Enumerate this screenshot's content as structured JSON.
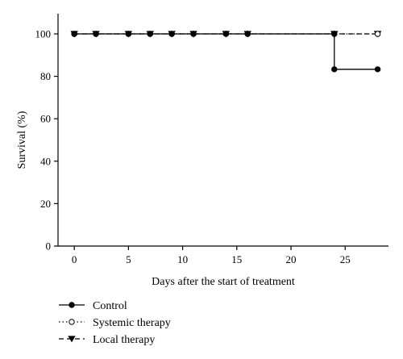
{
  "chart_data": {
    "type": "line",
    "title": "",
    "xlabel": "Days after the start of treatment",
    "ylabel": "Survival (%)",
    "xlim": [
      -1.5,
      29
    ],
    "ylim": [
      0,
      100
    ],
    "xticks": [
      0,
      5,
      10,
      15,
      20,
      25
    ],
    "yticks": [
      0,
      20,
      40,
      60,
      80,
      100
    ],
    "grid": false,
    "legend_position": "bottom-left",
    "series": [
      {
        "name": "Control",
        "style": "solid",
        "marker": "filled-circle",
        "step": true,
        "x": [
          0,
          2,
          5,
          7,
          9,
          11,
          14,
          16,
          24,
          24,
          28
        ],
        "y": [
          100,
          100,
          100,
          100,
          100,
          100,
          100,
          100,
          100,
          83.3,
          83.3
        ]
      },
      {
        "name": "Systemic therapy",
        "style": "dotted",
        "marker": "open-circle",
        "step": true,
        "x": [
          0,
          2,
          5,
          7,
          9,
          11,
          14,
          16,
          24,
          28
        ],
        "y": [
          100,
          100,
          100,
          100,
          100,
          100,
          100,
          100,
          100,
          100
        ]
      },
      {
        "name": "Local therapy",
        "style": "dashed",
        "marker": "filled-triangle-down",
        "step": true,
        "x": [
          0,
          2,
          5,
          7,
          9,
          11,
          14,
          16,
          24,
          28
        ],
        "y": [
          100,
          100,
          100,
          100,
          100,
          100,
          100,
          100,
          100,
          100
        ]
      }
    ]
  }
}
